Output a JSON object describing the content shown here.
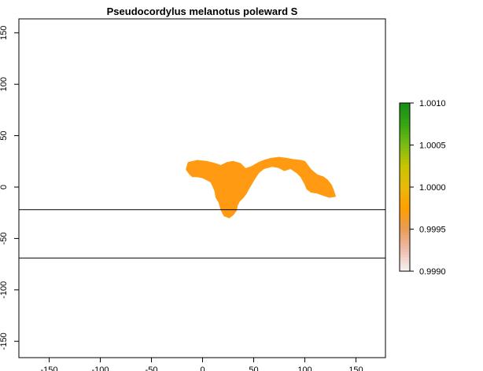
{
  "chart_data": {
    "type": "heatmap",
    "title": "Pseudocordylus melanotus poleward S",
    "xlabel": "",
    "ylabel": "",
    "xlim": [
      -180,
      180
    ],
    "ylim": [
      -165,
      165
    ],
    "x_ticks": [
      -150,
      -100,
      -50,
      0,
      50,
      100,
      150
    ],
    "x_tick_labels": [
      "-150",
      "-100",
      "-50",
      "0",
      "50",
      "100",
      "150"
    ],
    "y_ticks": [
      -150,
      -100,
      -50,
      0,
      50,
      100,
      150
    ],
    "y_tick_labels": [
      "-150",
      "-100",
      "-50",
      "0",
      "50",
      "100",
      "150"
    ],
    "reference_lines": [
      {
        "orientation": "horizontal",
        "y": -22
      },
      {
        "orientation": "horizontal",
        "y": -69
      }
    ],
    "raster_value": 0.9997,
    "raster_color": "#ff9a12",
    "region_outline": [
      [
        -14,
        24
      ],
      [
        -5,
        26
      ],
      [
        4,
        25
      ],
      [
        12,
        23
      ],
      [
        18,
        21
      ],
      [
        24,
        24
      ],
      [
        30,
        25
      ],
      [
        37,
        23
      ],
      [
        42,
        18
      ],
      [
        48,
        20
      ],
      [
        55,
        24
      ],
      [
        60,
        26
      ],
      [
        67,
        28
      ],
      [
        75,
        29
      ],
      [
        82,
        28
      ],
      [
        88,
        27
      ],
      [
        96,
        26
      ],
      [
        100,
        25
      ],
      [
        103,
        21
      ],
      [
        106,
        17
      ],
      [
        112,
        12
      ],
      [
        118,
        10
      ],
      [
        122,
        7
      ],
      [
        126,
        2
      ],
      [
        128,
        -3
      ],
      [
        130,
        -9
      ],
      [
        124,
        -10
      ],
      [
        118,
        -8
      ],
      [
        112,
        -6
      ],
      [
        106,
        -5
      ],
      [
        102,
        -2
      ],
      [
        100,
        3
      ],
      [
        96,
        10
      ],
      [
        92,
        14
      ],
      [
        86,
        18
      ],
      [
        80,
        16
      ],
      [
        74,
        19
      ],
      [
        68,
        20
      ],
      [
        60,
        18
      ],
      [
        55,
        14
      ],
      [
        51,
        8
      ],
      [
        48,
        3
      ],
      [
        45,
        -2
      ],
      [
        43,
        -6
      ],
      [
        40,
        -10
      ],
      [
        36,
        -14
      ],
      [
        34,
        -18
      ],
      [
        33,
        -23
      ],
      [
        30,
        -27
      ],
      [
        26,
        -30
      ],
      [
        21,
        -28
      ],
      [
        18,
        -22
      ],
      [
        16,
        -15
      ],
      [
        13,
        -10
      ],
      [
        12,
        -4
      ],
      [
        10,
        1
      ],
      [
        8,
        5
      ],
      [
        4,
        7
      ],
      [
        0,
        9
      ],
      [
        -5,
        10
      ],
      [
        -10,
        10
      ],
      [
        -13,
        13
      ],
      [
        -16,
        17
      ],
      [
        -15,
        21
      ]
    ],
    "legend": {
      "type": "colorbar",
      "placement": "right",
      "min": 0.999,
      "max": 1.001,
      "ticks": [
        1.001,
        1.0005,
        1.0,
        0.9995,
        0.999
      ],
      "tick_labels": [
        "1.0010",
        "1.0005",
        "1.0000",
        "0.9995",
        "0.9990"
      ],
      "colors": [
        "#f4f1f1",
        "#eebca9",
        "#e79c57",
        "#ff9f00",
        "#e9b90e",
        "#c9c400",
        "#7fbc14",
        "#3aa712",
        "#179015"
      ]
    },
    "grid": false
  }
}
